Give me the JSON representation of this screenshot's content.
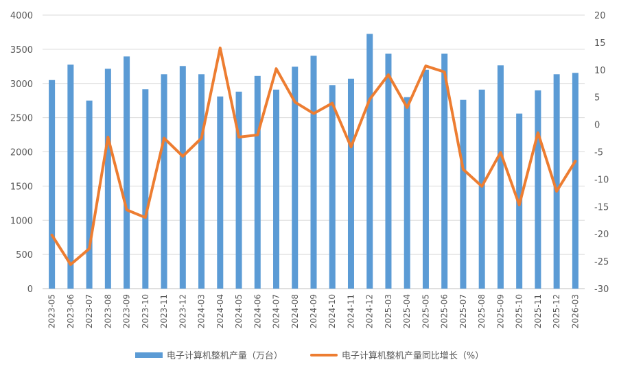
{
  "chart_data": {
    "type": "bar+line",
    "categories": [
      "2023-05",
      "2023-06",
      "2023-07",
      "2023-08",
      "2023-09",
      "2023-10",
      "2023-11",
      "2023-12",
      "2024-03",
      "2024-04",
      "2024-05",
      "2024-06",
      "2024-07",
      "2024-08",
      "2024-09",
      "2024-10",
      "2024-11",
      "2024-12",
      "2025-03",
      "2025-04",
      "2025-05",
      "2025-06",
      "2025-07",
      "2025-08",
      "2025-09",
      "2025-10",
      "2025-11",
      "2025-12",
      "2026-03"
    ],
    "series": [
      {
        "name": "电子计算机整机产量（万台）",
        "type": "bar",
        "axis": "left",
        "color": "#5B9BD5",
        "values": [
          3050,
          3275,
          2750,
          3215,
          3395,
          2915,
          3135,
          3255,
          3135,
          2810,
          2880,
          3110,
          2910,
          3245,
          3405,
          2975,
          3070,
          3725,
          3435,
          2800,
          3200,
          3435,
          2760,
          2910,
          3265,
          2560,
          2900,
          3135,
          3155
        ]
      },
      {
        "name": "电子计算机整机产量同比增长（%）",
        "type": "line",
        "axis": "right",
        "color": "#ED7D31",
        "values": [
          -20.2,
          -25.6,
          -22.7,
          -2.3,
          -15.6,
          -17.0,
          -2.5,
          -5.8,
          -2.5,
          14.0,
          -2.3,
          -1.9,
          10.2,
          4.1,
          2.0,
          3.9,
          -4.1,
          4.6,
          9.1,
          3.1,
          10.7,
          9.6,
          -8.2,
          -11.3,
          -5.1,
          -14.7,
          -1.5,
          -12.2,
          -6.7
        ]
      }
    ],
    "yaxis_left": {
      "min": 0,
      "max": 4000,
      "ticks": [
        "0",
        "500",
        "1000",
        "1500",
        "2000",
        "2500",
        "3000",
        "3500",
        "4000"
      ]
    },
    "yaxis_right": {
      "min": -30,
      "max": 20,
      "ticks": [
        "-30",
        "-25",
        "-20",
        "-15",
        "-10",
        "-5",
        "0",
        "5",
        "10",
        "15",
        "20"
      ]
    },
    "grid": true,
    "legend_position": "bottom",
    "title": "",
    "xlabel": "",
    "ylabel": ""
  },
  "legend": {
    "bar_label": "电子计算机整机产量（万台）",
    "line_label": "电子计算机整机产量同比增长（%）"
  }
}
